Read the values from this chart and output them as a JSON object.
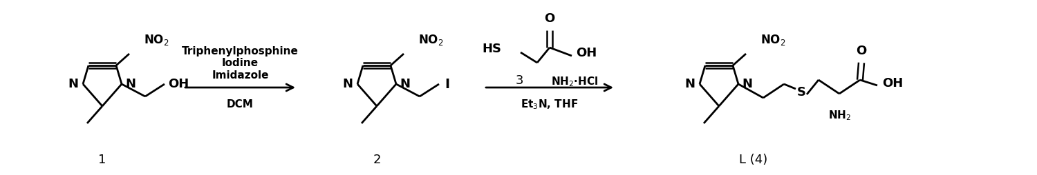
{
  "background_color": "#ffffff",
  "fig_width": 15.0,
  "fig_height": 2.54,
  "dpi": 100,
  "reagents1": [
    "Triphenylphosphine",
    "Iodine",
    "Imidazole",
    "DCM"
  ],
  "reagents2_below": "Et$_3$N, THF",
  "label1": "1",
  "label2": "2",
  "label3": "3",
  "label4": "L (4)"
}
